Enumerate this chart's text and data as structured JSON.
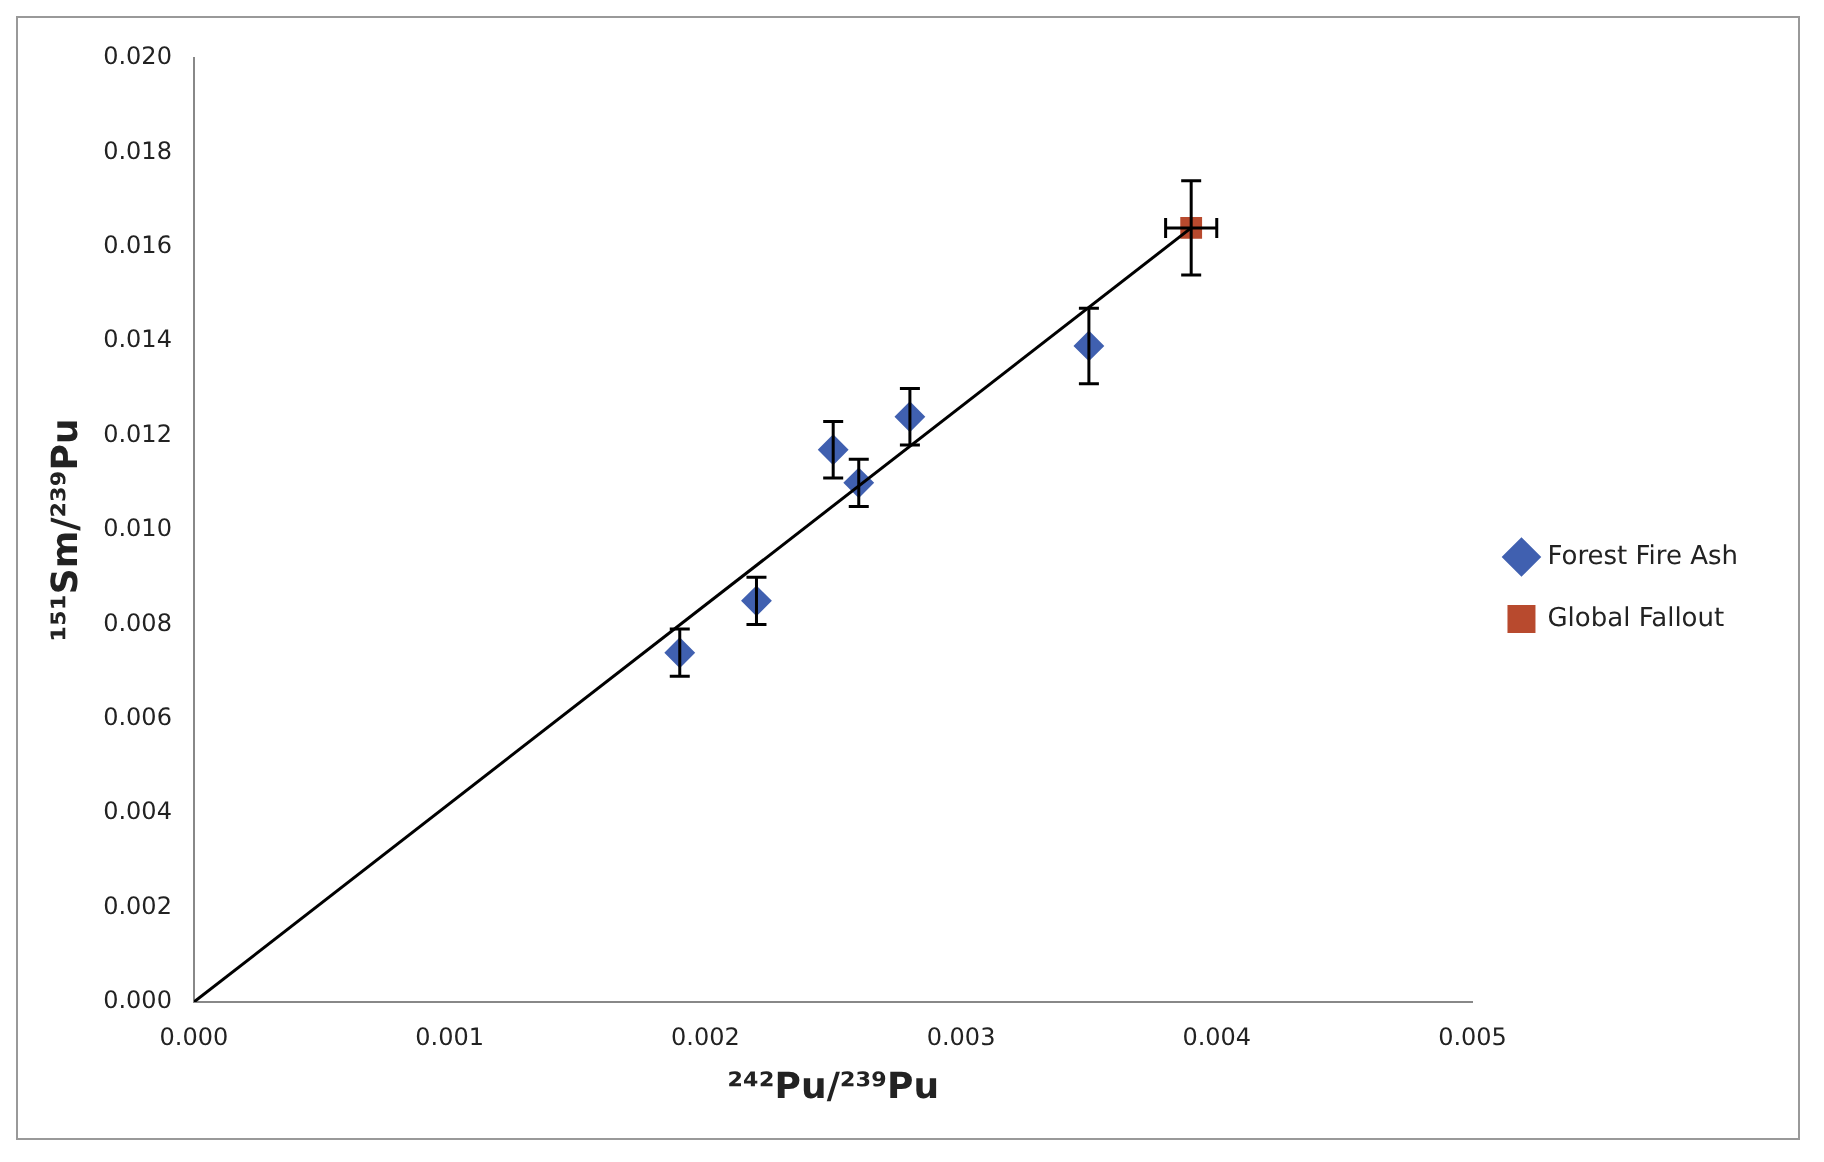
{
  "chart_data": {
    "type": "scatter",
    "xlabel": "²⁴²Pu/²³⁹Pu",
    "ylabel": "¹⁵¹Sm/²³⁹Pu",
    "xlim": [
      0,
      0.005
    ],
    "xticks": [
      {
        "value": 0,
        "label": "0.000"
      },
      {
        "value": 0.001,
        "label": "0.001"
      },
      {
        "value": 0.002,
        "label": "0.002"
      },
      {
        "value": 0.003,
        "label": "0.003"
      },
      {
        "value": 0.004,
        "label": "0.004"
      },
      {
        "value": 0.005,
        "label": "0.005"
      }
    ],
    "ylim": [
      0,
      0.02
    ],
    "yticks": [
      {
        "value": 0,
        "label": "0.000"
      },
      {
        "value": 0.002,
        "label": "0.002"
      },
      {
        "value": 0.004,
        "label": "0.004"
      },
      {
        "value": 0.006,
        "label": "0.006"
      },
      {
        "value": 0.008,
        "label": "0.008"
      },
      {
        "value": 0.01,
        "label": "0.010"
      },
      {
        "value": 0.012,
        "label": "0.012"
      },
      {
        "value": 0.014,
        "label": "0.014"
      },
      {
        "value": 0.016,
        "label": "0.016"
      },
      {
        "value": 0.018,
        "label": "0.018"
      },
      {
        "value": 0.02,
        "label": "0.020"
      }
    ],
    "grid": false,
    "legend": "right",
    "series": [
      {
        "type": "line",
        "color": "#000000",
        "marker": "none",
        "line_style": "solid",
        "x": [
          0,
          0.0039
        ],
        "values": [
          0,
          0.0164
        ]
      },
      {
        "name": "Forest Fire Ash",
        "color": "#4060b0",
        "marker": "diamond",
        "x": [
          0.0019,
          0.0022,
          0.0025,
          0.0026,
          0.0028,
          0.0035
        ],
        "values": [
          0.0074,
          0.0085,
          0.0117,
          0.011,
          0.0124,
          0.0139
        ],
        "errors": [
          0.0005,
          0.0005,
          0.0006,
          0.0005,
          0.0006,
          0.0008
        ]
      },
      {
        "name": "Global Fallout",
        "color": "#b84a2e",
        "marker": "square",
        "x": [
          0.0039
        ],
        "values": [
          0.0164
        ],
        "errors": [
          0.001
        ],
        "xerrors": [
          0.0001
        ]
      }
    ]
  }
}
